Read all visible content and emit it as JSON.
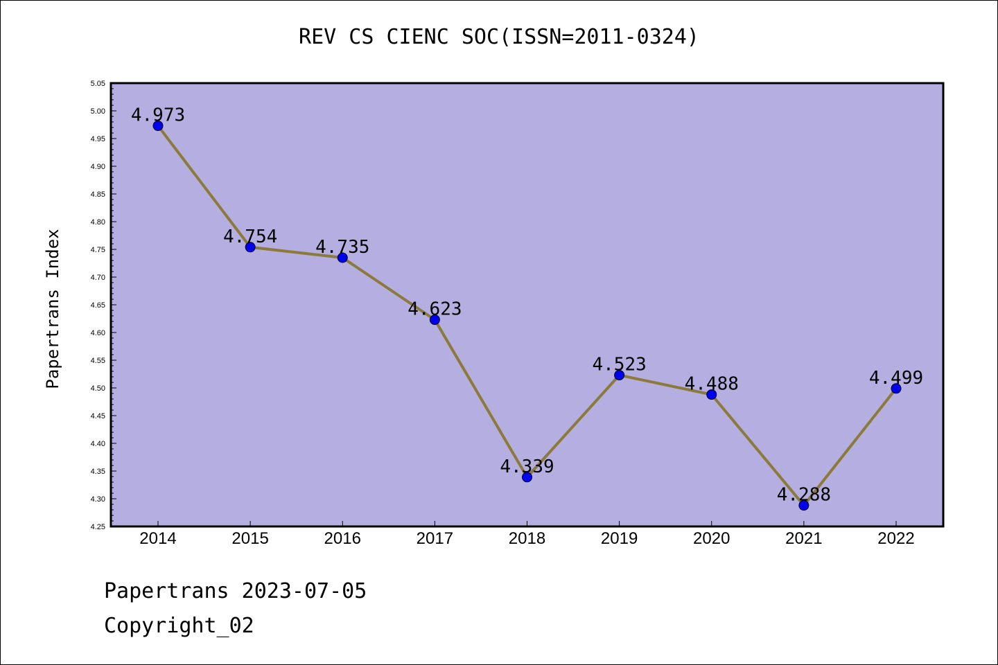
{
  "chart_data": {
    "type": "line",
    "title": "REV CS CIENC SOC(ISSN=2011-0324)",
    "xlabel": "",
    "ylabel": "Papertrans Index",
    "categories": [
      "2014",
      "2015",
      "2016",
      "2017",
      "2018",
      "2019",
      "2020",
      "2021",
      "2022"
    ],
    "series": [
      {
        "values": [
          4.973,
          4.754,
          4.735,
          4.623,
          4.339,
          4.523,
          4.488,
          4.288,
          4.499
        ],
        "data_labels": [
          "4.973",
          "4.754",
          "4.735",
          "4.623",
          "4.339",
          "4.523",
          "4.488",
          "4.288",
          "4.499"
        ]
      }
    ],
    "ylim": [
      4.25,
      5.05
    ],
    "yticks": [
      "4.25",
      "4.30",
      "4.35",
      "4.40",
      "4.45",
      "4.50",
      "4.55",
      "4.60",
      "4.65",
      "4.70",
      "4.75",
      "4.80",
      "4.85",
      "4.90",
      "4.95",
      "5.00",
      "5.05"
    ],
    "grid": false,
    "colors": {
      "plot_background": "#b4aee1",
      "line": "#8b7a3a",
      "marker": "#0000ee"
    }
  },
  "footer": {
    "line1": "Papertrans 2023-07-05",
    "line2": "Copyright_02"
  }
}
